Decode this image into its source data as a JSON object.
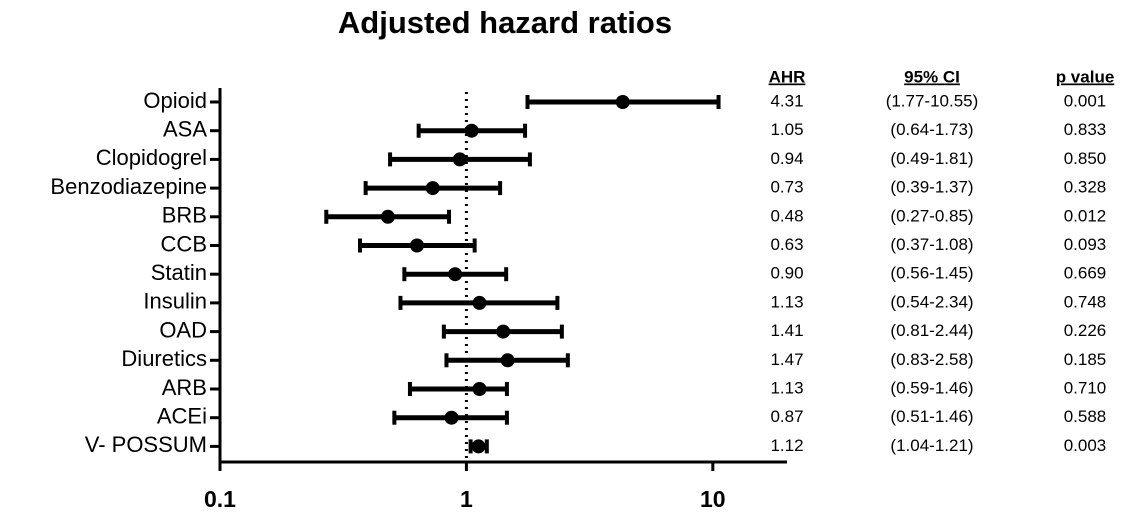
{
  "chart_data": {
    "type": "forest",
    "title": "Adjusted hazard ratios",
    "categories": [
      "Opioid",
      "ASA",
      "Clopidogrel",
      "Benzodiazepine",
      "BRB",
      "CCB",
      "Statin",
      "Insulin",
      "OAD",
      "Diuretics",
      "ARB",
      "ACEi",
      "V- POSSUM"
    ],
    "values": [
      4.31,
      1.05,
      0.94,
      0.73,
      0.48,
      0.63,
      0.9,
      1.13,
      1.41,
      1.47,
      1.13,
      0.87,
      1.12
    ],
    "value_labels": [
      "4.31",
      "1.05",
      "0.94",
      "0.73",
      "0.48",
      "0.63",
      "0.90",
      "1.13",
      "1.41",
      "1.47",
      "1.13",
      "0.87",
      "1.12"
    ],
    "lower": [
      1.77,
      0.64,
      0.49,
      0.39,
      0.27,
      0.37,
      0.56,
      0.54,
      0.81,
      0.83,
      0.59,
      0.51,
      1.04
    ],
    "upper": [
      10.55,
      1.73,
      1.81,
      1.37,
      0.85,
      1.08,
      1.45,
      2.34,
      2.44,
      2.58,
      1.46,
      1.46,
      1.21
    ],
    "ci_labels": [
      "(1.77-10.55)",
      "(0.64-1.73)",
      "(0.49-1.81)",
      "(0.39-1.37)",
      "(0.27-0.85)",
      "(0.37-1.08)",
      "(0.56-1.45)",
      "(0.54-2.34)",
      "(0.81-2.44)",
      "(0.83-2.58)",
      "(0.59-1.46)",
      "(0.51-1.46)",
      "(1.04-1.21)"
    ],
    "p_values": [
      "0.001",
      "0.833",
      "0.850",
      "0.328",
      "0.012",
      "0.093",
      "0.669",
      "0.748",
      "0.226",
      "0.185",
      "0.710",
      "0.588",
      "0.003"
    ],
    "column_headers": [
      "AHR",
      "95% CI",
      "p value"
    ],
    "xlim": [
      0.1,
      20
    ],
    "xticks": [
      0.1,
      1,
      10
    ],
    "log_x": true,
    "reference_line": 1,
    "color": "#000000"
  }
}
